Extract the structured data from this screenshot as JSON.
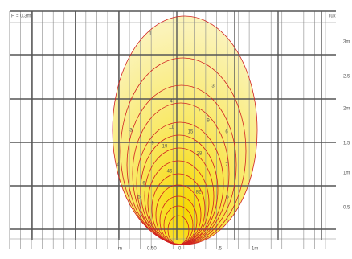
{
  "header": {
    "height_label": "H = 0.3m",
    "unit": "lux"
  },
  "y_axis": {
    "labels": [
      "3m",
      "2.5",
      "2m",
      "1.5",
      "1m",
      "0.5"
    ]
  },
  "x_axis": {
    "labels": [
      "m",
      "0.50",
      "0",
      ".5",
      "1m"
    ]
  },
  "contour_labels": [
    "1",
    "3",
    "3",
    "4",
    "7",
    "9",
    "11",
    "15",
    "6",
    "9",
    "19",
    "28",
    "4",
    "7",
    "46",
    "6",
    "82",
    "5",
    "5"
  ]
}
